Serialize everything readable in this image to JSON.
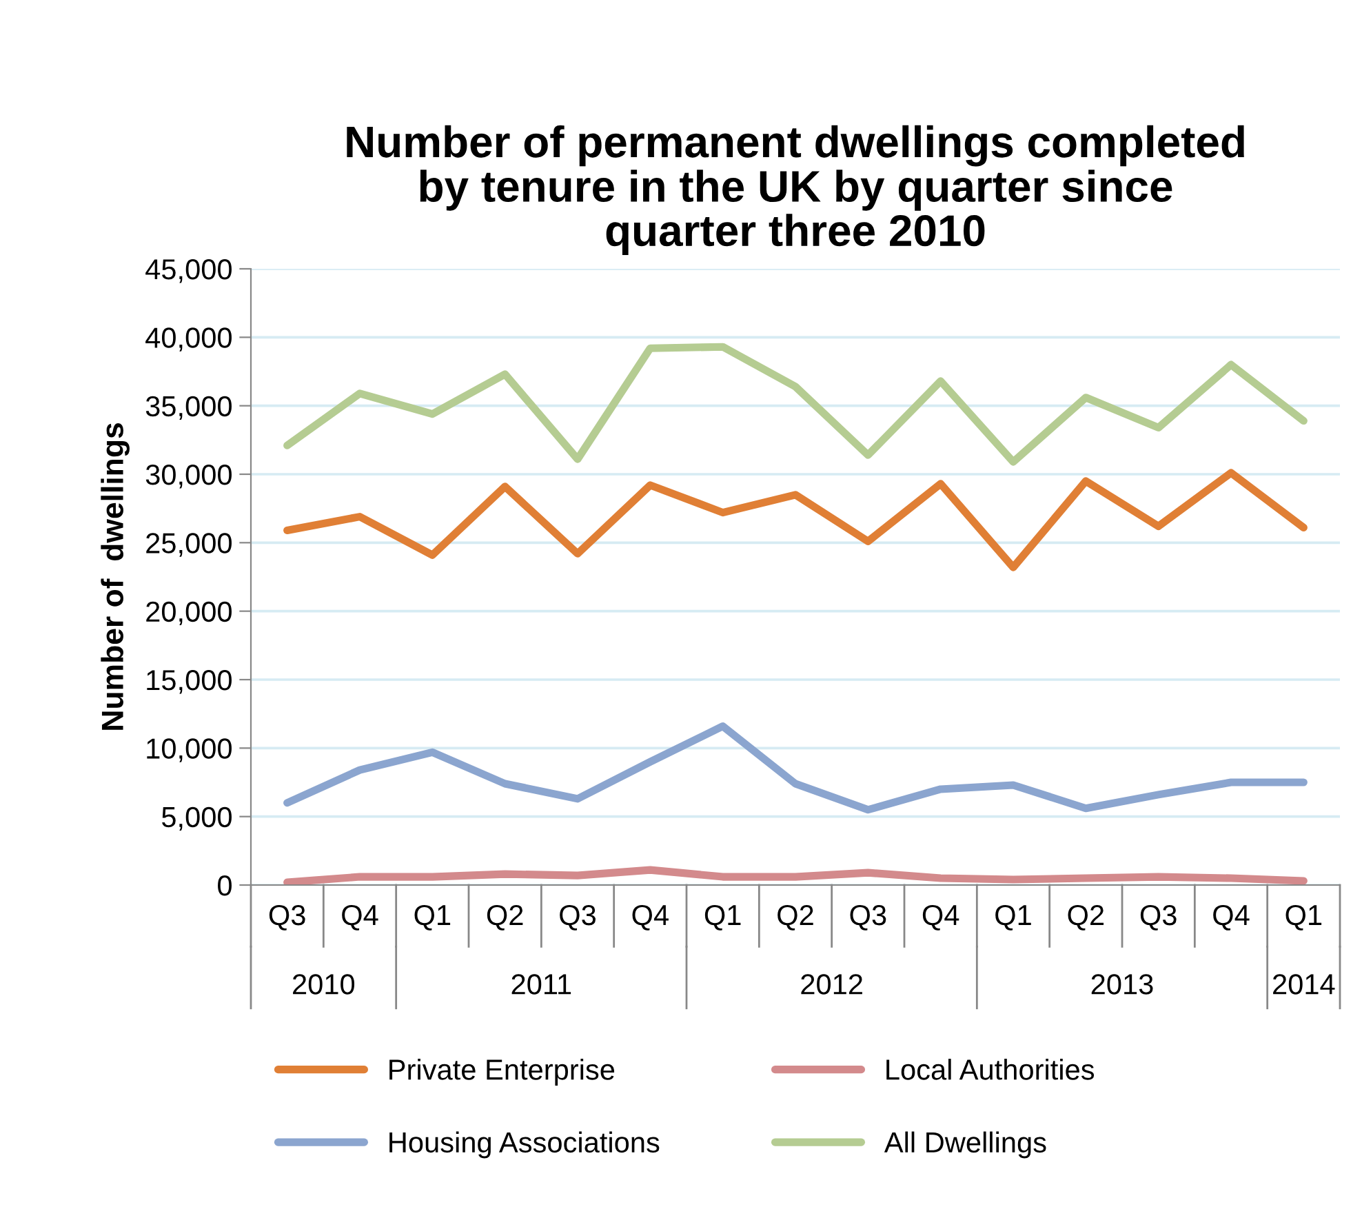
{
  "chart_data": {
    "type": "line",
    "title": "Number of permanent dwellings completed\nby tenure in the UK by quarter since\nquarter three 2010",
    "ylabel": "Number of  dwellings",
    "categories": [
      "Q3",
      "Q4",
      "Q1",
      "Q2",
      "Q3",
      "Q4",
      "Q1",
      "Q2",
      "Q3",
      "Q4",
      "Q1",
      "Q2",
      "Q3",
      "Q4",
      "Q1"
    ],
    "annotations": [
      "2010",
      "2011",
      "2012",
      "2013",
      "2014"
    ],
    "series": [
      {
        "name": "Private Enterprise",
        "color": "#e07f35",
        "values": [
          25900,
          26900,
          24100,
          29100,
          24200,
          29200,
          27200,
          28500,
          25100,
          29300,
          23200,
          29500,
          26200,
          30100,
          26100
        ]
      },
      {
        "name": "Housing Associations",
        "color": "#8ba5cf",
        "values": [
          6000,
          8400,
          9700,
          7400,
          6300,
          9000,
          11600,
          7400,
          5500,
          7000,
          7300,
          5600,
          6600,
          7500,
          7500
        ]
      },
      {
        "name": "Local Authorities",
        "color": "#d38a8c",
        "values": [
          200,
          600,
          600,
          800,
          700,
          1100,
          600,
          600,
          900,
          500,
          400,
          500,
          600,
          500,
          300
        ]
      },
      {
        "name": "All Dwellings",
        "color": "#b5cc92",
        "values": [
          32100,
          35900,
          34400,
          37300,
          31100,
          39200,
          39300,
          36400,
          31400,
          36800,
          30900,
          35600,
          33400,
          38000,
          33900
        ]
      }
    ],
    "ylim": [
      0,
      45000
    ],
    "yticks": [
      {
        "value": 0,
        "label": "0"
      },
      {
        "value": 5000,
        "label": "5,000"
      },
      {
        "value": 10000,
        "label": "10,000"
      },
      {
        "value": 15000,
        "label": "15,000"
      },
      {
        "value": 20000,
        "label": "20,000"
      },
      {
        "value": 25000,
        "label": "25,000"
      },
      {
        "value": 30000,
        "label": "30,000"
      },
      {
        "value": 35000,
        "label": "35,000"
      },
      {
        "value": 40000,
        "label": "40,000"
      },
      {
        "value": 45000,
        "label": "45,000"
      }
    ],
    "grid": "y",
    "legend": "bottom",
    "marker": "none",
    "line_style": "solid"
  }
}
